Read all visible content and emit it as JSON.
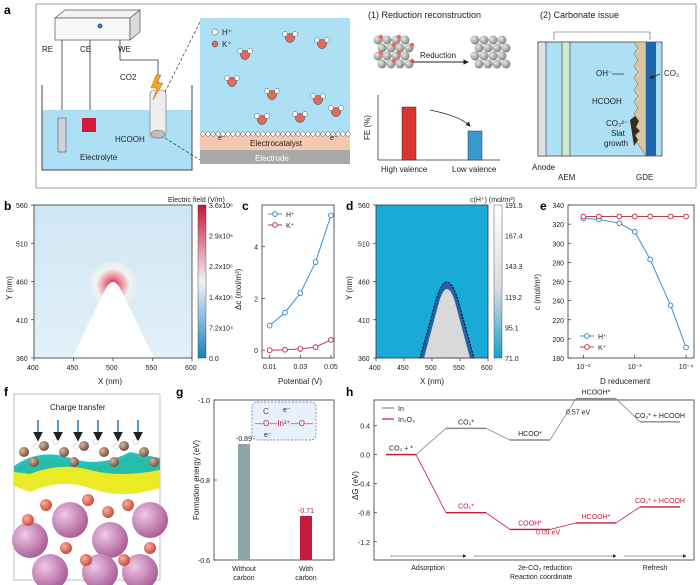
{
  "panel_labels": [
    "a",
    "b",
    "c",
    "d",
    "e",
    "f",
    "g",
    "h"
  ],
  "panel_a": {
    "cell": {
      "re": "RE",
      "ce": "CE",
      "we": "WE",
      "co2": "CO2",
      "hcooh": "HCOOH",
      "electrolyte": "Electrolyte"
    },
    "zoom": {
      "legend_h": "H⁺",
      "legend_k": "K⁺",
      "electrocatalyst": "Electrocatalyst",
      "electrode": "Electrode",
      "electron": "e⁻"
    },
    "reduction": {
      "title": "(1) Reduction reconstruction",
      "arrow": "Reduction",
      "ylabel": "FE (%)",
      "bars": [
        "High valence",
        "Low valence"
      ]
    },
    "carbonate": {
      "title": "(2) Carbonate issue",
      "oh": "OH⁻",
      "hcooh": "HCOOH",
      "co3": "CO₃²⁻",
      "slat1": "Slat",
      "slat2": "growth",
      "co2": "CO₂",
      "anode": "Anode",
      "aem": "AEM",
      "gde": "GDE"
    }
  },
  "panel_b": {
    "colorbar_title": "Electric field (V/m)",
    "colorbar_ticks": [
      "3.6x10⁶",
      "2.9x10⁶",
      "2.2x10⁶",
      "1.4x10⁶",
      "7.2x10⁴",
      "0.0"
    ],
    "xlabel": "X (nm)",
    "ylabel": "Y (nm)",
    "xticks": [
      "400",
      "450",
      "500",
      "550",
      "600"
    ],
    "yticks": [
      "560",
      "510",
      "460",
      "410",
      "360"
    ]
  },
  "panel_d": {
    "colorbar_title": "c(H⁺) (mol/m³)",
    "colorbar_ticks": [
      "191.5",
      "167.4",
      "143.3",
      "119.2",
      "95.1",
      "71.0"
    ],
    "xlabel": "X (nm)",
    "ylabel": "Y (nm)",
    "xticks": [
      "400",
      "450",
      "500",
      "550",
      "600"
    ],
    "yticks": [
      "560",
      "510",
      "460",
      "410",
      "360"
    ]
  },
  "panel_f": {
    "title": "Charge transfer"
  },
  "panel_g": {
    "inset_c": "C",
    "inset_e": "e⁻",
    "inset_chain": "—O—In³⁺—O—"
  },
  "chart_data": [
    {
      "panel": "c",
      "type": "line",
      "xlabel": "Potential (V)",
      "ylabel": "Δc (mol/m³)",
      "x": [
        0.01,
        0.02,
        0.03,
        0.04,
        0.05
      ],
      "xticks": [
        "0.01",
        "0.03",
        "0.05"
      ],
      "yticks": [
        "0",
        "2",
        "4"
      ],
      "xlim": [
        0.005,
        0.052
      ],
      "ylim": [
        -0.3,
        5.6
      ],
      "series": [
        {
          "name": "H⁺",
          "color": "#3a8fd1",
          "values": [
            0.95,
            1.45,
            2.2,
            3.4,
            5.2
          ]
        },
        {
          "name": "K⁺",
          "color": "#c2394d",
          "values": [
            0.0,
            0.02,
            0.05,
            0.12,
            0.4
          ]
        }
      ]
    },
    {
      "panel": "e",
      "type": "line",
      "xlabel": "D reducement",
      "ylabel": "c (mol/m³)",
      "x": [
        0.01,
        0.005,
        0.002,
        0.001,
        0.0005,
        0.0002,
        0.0001
      ],
      "xticks": [
        "10⁻²",
        "10⁻³",
        "10⁻⁴"
      ],
      "yticks": [
        "180",
        "200",
        "220",
        "240",
        "260",
        "280",
        "300",
        "320",
        "340"
      ],
      "ylim": [
        180,
        340
      ],
      "xscale": "log-reversed",
      "series": [
        {
          "name": "H⁺",
          "color": "#3a8fd1",
          "values": [
            326,
            325,
            321,
            312,
            283,
            235,
            191
          ]
        },
        {
          "name": "K⁺",
          "color": "#c2394d",
          "values": [
            328,
            328,
            328,
            328,
            328,
            328,
            328
          ]
        }
      ]
    },
    {
      "panel": "g",
      "type": "bar",
      "ylabel": "Formation energy (eV)",
      "categories": [
        "Without carbon",
        "With carbon"
      ],
      "values": [
        -0.89,
        -0.71
      ],
      "labels": [
        "-0.89",
        "-0.71"
      ],
      "colors": [
        "#8fa4a8",
        "#c41a3c"
      ],
      "yticks": [
        "-1.0",
        "-0.8",
        "-0.6"
      ],
      "ylim": [
        -1.0,
        -0.6
      ]
    },
    {
      "panel": "h",
      "type": "line",
      "ylabel": "ΔG (eV)",
      "xlabel": "Reaction coordinate",
      "phases": [
        "Adsorption",
        "2e-CO₂ reduction",
        "Refresh"
      ],
      "yticks": [
        "0.4",
        "0.0",
        "-0.4",
        "-0.8",
        "-1.2"
      ],
      "ylim": [
        -1.45,
        0.75
      ],
      "series": [
        {
          "name": "In",
          "color": "#8a8a8a",
          "states": [
            "CO₂ + *",
            "CO₂*",
            "HCOO*",
            "HCOOH*",
            "CO₂* + HCOOH"
          ],
          "values": [
            0.0,
            0.36,
            0.2,
            0.77,
            0.45
          ],
          "note": "0.57 eV"
        },
        {
          "name": "In₂O₃",
          "color": "#c41a3c",
          "states": [
            "CO₂ + *",
            "CO₂*",
            "COOH*",
            "HCOOH*",
            "CO₂* + HCOOH"
          ],
          "values": [
            0.0,
            -0.8,
            -1.03,
            -0.94,
            -0.72
          ],
          "note": "0.09 eV"
        }
      ]
    }
  ]
}
